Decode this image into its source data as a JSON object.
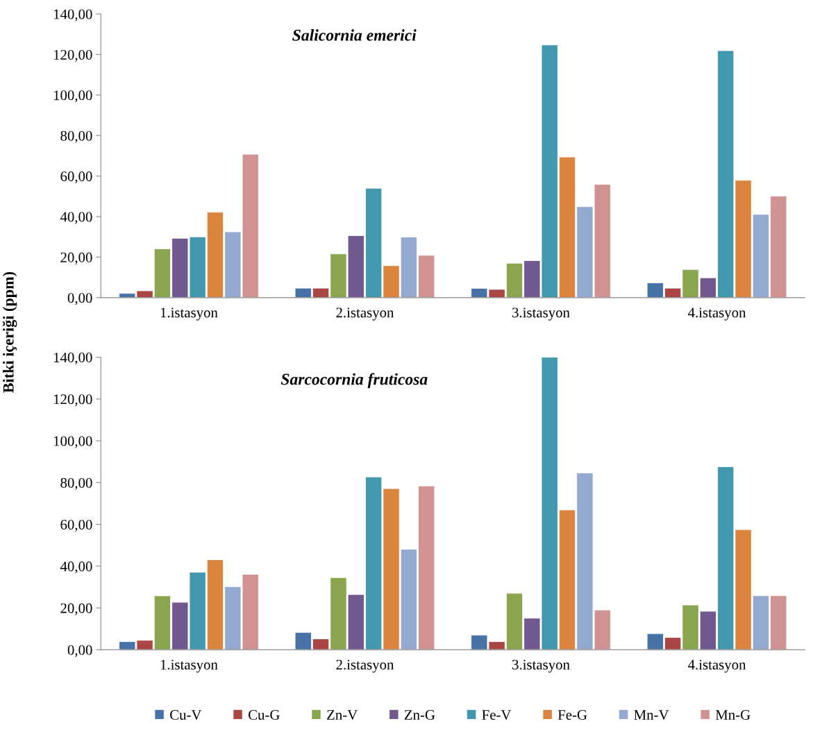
{
  "chart_data": [
    {
      "type": "bar",
      "title": "Salicornia emerici",
      "ylabel": "Bitki içeriği (ppm)",
      "categories": [
        "1.istasyon",
        "2.istasyon",
        "3.istasyon",
        "4.istasyon"
      ],
      "series": [
        {
          "name": "Cu-V",
          "color": "#4672a8",
          "values": [
            2.1,
            4.7,
            4.6,
            7.3
          ]
        },
        {
          "name": "Cu-G",
          "color": "#aa4644",
          "values": [
            3.4,
            4.7,
            4.1,
            4.7
          ]
        },
        {
          "name": "Zn-V",
          "color": "#89a54e",
          "values": [
            24.1,
            21.6,
            17.0,
            13.9
          ]
        },
        {
          "name": "Zn-G",
          "color": "#71588f",
          "values": [
            29.3,
            30.6,
            18.3,
            9.8
          ]
        },
        {
          "name": "Fe-V",
          "color": "#4198af",
          "values": [
            30.0,
            54.0,
            124.7,
            121.9
          ]
        },
        {
          "name": "Fe-G",
          "color": "#db843d",
          "values": [
            42.2,
            15.8,
            69.4,
            57.9
          ]
        },
        {
          "name": "Mn-V",
          "color": "#93a9cf",
          "values": [
            32.5,
            29.9,
            44.9,
            41.1
          ]
        },
        {
          "name": "Mn-G",
          "color": "#d19392",
          "values": [
            70.8,
            20.9,
            55.9,
            50.1
          ]
        }
      ],
      "ylim": [
        0,
        140
      ],
      "yticks": [
        {
          "value": 0,
          "label": "0,00"
        },
        {
          "value": 20,
          "label": "20,00"
        },
        {
          "value": 40,
          "label": "40,00"
        },
        {
          "value": 60,
          "label": "60,00"
        },
        {
          "value": 80,
          "label": "80,00"
        },
        {
          "value": 100,
          "label": "100,00"
        },
        {
          "value": 120,
          "label": "120,00"
        },
        {
          "value": 140,
          "label": "140,00"
        }
      ],
      "grid": false,
      "legend": "bottom"
    },
    {
      "type": "bar",
      "title": "Sarcocornia fruticosa",
      "categories": [
        "1.istasyon",
        "2.istasyon",
        "3.istasyon",
        "4.istasyon"
      ],
      "series": [
        {
          "name": "Cu-V",
          "color": "#4672a8",
          "values": [
            3.9,
            8.3,
            7.0,
            7.7
          ]
        },
        {
          "name": "Cu-G",
          "color": "#aa4644",
          "values": [
            4.5,
            5.2,
            3.9,
            5.9
          ]
        },
        {
          "name": "Zn-V",
          "color": "#89a54e",
          "values": [
            25.8,
            34.5,
            27.0,
            21.4
          ]
        },
        {
          "name": "Zn-G",
          "color": "#71588f",
          "values": [
            22.7,
            26.4,
            15.1,
            18.4
          ]
        },
        {
          "name": "Fe-V",
          "color": "#4198af",
          "values": [
            37.1,
            82.7,
            140,
            87.6
          ]
        },
        {
          "name": "Fe-G",
          "color": "#db843d",
          "values": [
            43.1,
            77.1,
            66.9,
            57.5
          ]
        },
        {
          "name": "Mn-V",
          "color": "#93a9cf",
          "values": [
            30.2,
            48.1,
            84.6,
            25.9
          ]
        },
        {
          "name": "Mn-G",
          "color": "#d19392",
          "values": [
            36.1,
            78.4,
            19.0,
            25.9
          ]
        }
      ],
      "ylim": [
        0,
        140
      ],
      "yticks": [
        {
          "value": 0,
          "label": "0,00"
        },
        {
          "value": 20,
          "label": "20,00"
        },
        {
          "value": 40,
          "label": "40,00"
        },
        {
          "value": 60,
          "label": "60,00"
        },
        {
          "value": 80,
          "label": "80,00"
        },
        {
          "value": 100,
          "label": "100,00"
        },
        {
          "value": 120,
          "label": "120,00"
        },
        {
          "value": 140,
          "label": "140,00"
        }
      ],
      "grid": false,
      "legend": "bottom"
    }
  ]
}
